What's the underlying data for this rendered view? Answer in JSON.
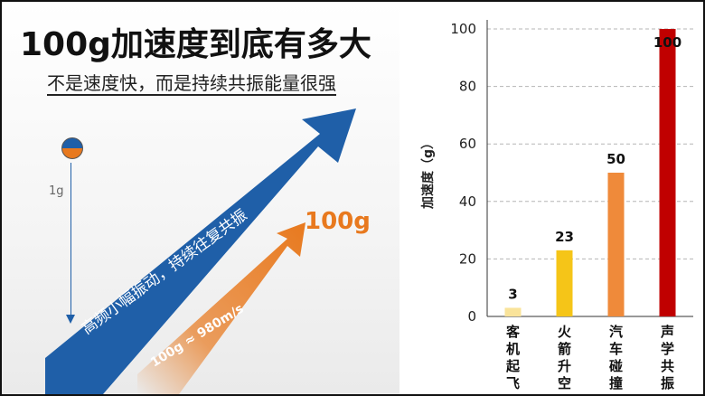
{
  "header": {
    "title": "100g加速度到底有多大",
    "subtitle": "不是速度快，而是持续共振能量很强"
  },
  "illustration": {
    "gravity_label": "1g",
    "blue_arrow_text": "高频小幅振动，持续往复共振",
    "orange_arrow_text": "100g ≈ 980m/s",
    "orange_arrow_value": "100g"
  },
  "colors": {
    "blue_arrow": "#1f5fa8",
    "orange_arrow": "#e8791e"
  },
  "chart_data": {
    "type": "bar",
    "ylabel": "加速度（g）",
    "ylim": [
      0,
      100
    ],
    "yticks": [
      "0",
      "20",
      "40",
      "60",
      "80",
      "100"
    ],
    "categories": [
      "客机起飞",
      "火箭升空",
      "汽车碰撞",
      "声学共振"
    ],
    "category_lines": [
      [
        "客",
        "机",
        "起",
        "飞"
      ],
      [
        "火",
        "箭",
        "升",
        "空"
      ],
      [
        "汽",
        "车",
        "碰",
        "撞"
      ],
      [
        "声",
        "学",
        "共",
        "振"
      ]
    ],
    "values": [
      3,
      23,
      50,
      100
    ],
    "value_labels": [
      "3",
      "23",
      "50",
      "100"
    ],
    "bar_colors": [
      "#f9e39a",
      "#f5c518",
      "#ef8a3a",
      "#c00000"
    ],
    "grid": "horizontal-dashed",
    "legend": "none"
  }
}
